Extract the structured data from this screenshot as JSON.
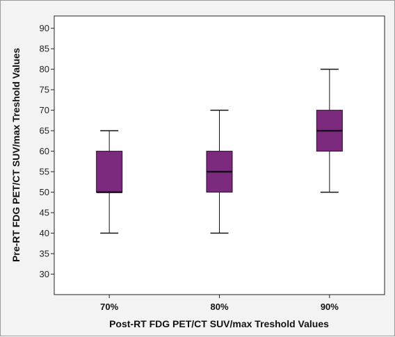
{
  "chart_data": {
    "type": "box",
    "xlabel": "Post-RT FDG PET/CT SUV/max Treshold Values",
    "ylabel": "Pre-RT FDG PET/CT SUV/max Treshold Values",
    "ylim": [
      25,
      93
    ],
    "yticks": [
      30,
      35,
      40,
      45,
      50,
      55,
      60,
      65,
      70,
      75,
      80,
      85,
      90
    ],
    "categories": [
      "70%",
      "80%",
      "90%"
    ],
    "boxes": [
      {
        "category": "70%",
        "min": 40,
        "q1": 50,
        "median": 50,
        "q3": 60,
        "max": 65
      },
      {
        "category": "80%",
        "min": 40,
        "q1": 50,
        "median": 55,
        "q3": 60,
        "max": 70
      },
      {
        "category": "90%",
        "min": 50,
        "q1": 60,
        "median": 65,
        "q3": 70,
        "max": 80
      }
    ],
    "box_color": "#7b2a7e",
    "median_color": "#1a0a1c",
    "grid": false
  }
}
